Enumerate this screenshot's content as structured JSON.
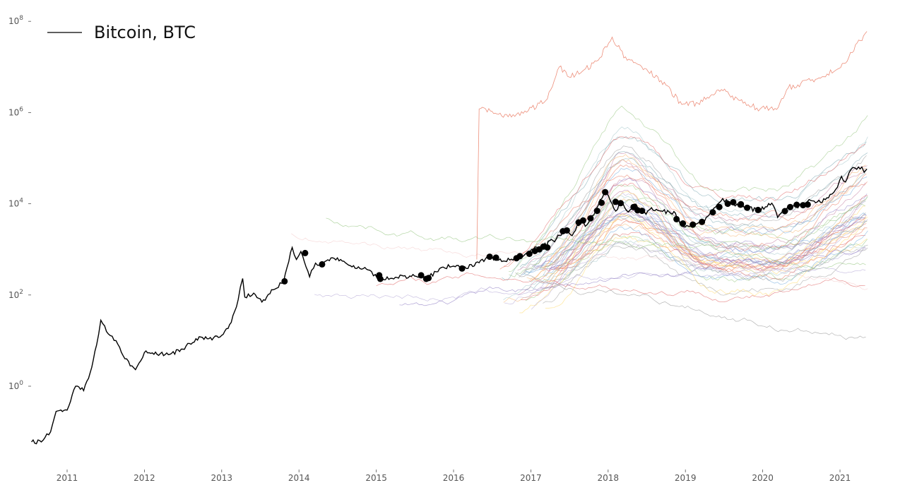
{
  "chart_data": {
    "type": "line",
    "title": "",
    "xlabel": "",
    "ylabel": "",
    "y_scale": "log",
    "ylim": [
      0.005,
      200000000
    ],
    "xlim": [
      "2010-07-01",
      "2021-12-31"
    ],
    "x_ticks": [
      "2011",
      "2012",
      "2013",
      "2014",
      "2015",
      "2016",
      "2017",
      "2018",
      "2019",
      "2020",
      "2021"
    ],
    "y_ticks": [
      {
        "value": 1,
        "base": "10",
        "exp": "0"
      },
      {
        "value": 100,
        "base": "10",
        "exp": "2"
      },
      {
        "value": 10000,
        "base": "10",
        "exp": "4"
      },
      {
        "value": 1000000,
        "base": "10",
        "exp": "6"
      },
      {
        "value": 100000000,
        "base": "10",
        "exp": "8"
      }
    ],
    "grid": false,
    "legend": {
      "position": "top-left",
      "entries": [
        {
          "label": "Bitcoin, BTC",
          "color": "#000000"
        }
      ]
    },
    "series": [
      {
        "name": "Bitcoin, BTC",
        "color": "#000000",
        "points": [
          [
            "2010-07-17",
            0.06
          ],
          [
            "2010-09-01",
            0.06
          ],
          [
            "2010-10-15",
            0.1
          ],
          [
            "2010-11-10",
            0.28
          ],
          [
            "2011-01-01",
            0.3
          ],
          [
            "2011-02-10",
            1.0
          ],
          [
            "2011-03-20",
            0.8
          ],
          [
            "2011-04-20",
            2.0
          ],
          [
            "2011-05-20",
            8.0
          ],
          [
            "2011-06-09",
            28.0
          ],
          [
            "2011-07-15",
            14.0
          ],
          [
            "2011-08-20",
            10.0
          ],
          [
            "2011-10-01",
            4.0
          ],
          [
            "2011-11-20",
            2.3
          ],
          [
            "2012-01-01",
            5.5
          ],
          [
            "2012-03-01",
            5.0
          ],
          [
            "2012-05-01",
            5.0
          ],
          [
            "2012-07-01",
            6.5
          ],
          [
            "2012-09-01",
            11.0
          ],
          [
            "2012-11-01",
            11.0
          ],
          [
            "2013-01-01",
            13.0
          ],
          [
            "2013-02-15",
            25.0
          ],
          [
            "2013-03-20",
            80.0
          ],
          [
            "2013-04-10",
            230.0
          ],
          [
            "2013-04-20",
            90.0
          ],
          [
            "2013-06-01",
            110.0
          ],
          [
            "2013-07-10",
            70.0
          ],
          [
            "2013-09-01",
            130.0
          ],
          [
            "2013-10-20",
            190.0
          ],
          [
            "2013-11-30",
            1100.0
          ],
          [
            "2013-12-20",
            600.0
          ],
          [
            "2014-01-10",
            900.0
          ],
          [
            "2014-02-20",
            250.0
          ],
          [
            "2014-03-20",
            500.0
          ],
          [
            "2014-04-10",
            450.0
          ],
          [
            "2014-06-01",
            650.0
          ],
          [
            "2014-08-01",
            550.0
          ],
          [
            "2014-10-01",
            380.0
          ],
          [
            "2014-12-01",
            350.0
          ],
          [
            "2015-01-14",
            210.0
          ],
          [
            "2015-04-01",
            245.0
          ],
          [
            "2015-07-01",
            260.0
          ],
          [
            "2015-09-01",
            235.0
          ],
          [
            "2015-11-04",
            400.0
          ],
          [
            "2016-01-01",
            430.0
          ],
          [
            "2016-04-01",
            420.0
          ],
          [
            "2016-06-15",
            700.0
          ],
          [
            "2016-08-01",
            580.0
          ],
          [
            "2016-10-01",
            610.0
          ],
          [
            "2016-12-01",
            750.0
          ],
          [
            "2017-01-05",
            1000.0
          ],
          [
            "2017-03-01",
            1200.0
          ],
          [
            "2017-05-01",
            1700.0
          ],
          [
            "2017-06-10",
            2800.0
          ],
          [
            "2017-07-15",
            2000.0
          ],
          [
            "2017-09-01",
            4700.0
          ],
          [
            "2017-09-15",
            3200.0
          ],
          [
            "2017-11-01",
            6500.0
          ],
          [
            "2017-12-17",
            19000.0
          ],
          [
            "2018-02-06",
            6900.0
          ],
          [
            "2018-03-01",
            11000.0
          ],
          [
            "2018-04-06",
            6600.0
          ],
          [
            "2018-05-05",
            9800.0
          ],
          [
            "2018-06-29",
            5900.0
          ],
          [
            "2018-07-25",
            8200.0
          ],
          [
            "2018-09-01",
            7000.0
          ],
          [
            "2018-11-15",
            6200.0
          ],
          [
            "2018-12-15",
            3200.0
          ],
          [
            "2019-02-07",
            3400.0
          ],
          [
            "2019-04-01",
            4100.0
          ],
          [
            "2019-05-15",
            8000.0
          ],
          [
            "2019-06-26",
            13000.0
          ],
          [
            "2019-08-01",
            10500.0
          ],
          [
            "2019-09-25",
            8500.0
          ],
          [
            "2019-12-15",
            7100.0
          ],
          [
            "2020-02-13",
            10300.0
          ],
          [
            "2020-03-12",
            5000.0
          ],
          [
            "2020-05-01",
            8800.0
          ],
          [
            "2020-07-01",
            9100.0
          ],
          [
            "2020-08-15",
            11800.0
          ],
          [
            "2020-10-01",
            10700.0
          ],
          [
            "2020-11-15",
            16000.0
          ],
          [
            "2020-12-20",
            23000.0
          ],
          [
            "2021-01-08",
            40000.0
          ],
          [
            "2021-01-27",
            30000.0
          ],
          [
            "2021-02-20",
            55000.0
          ],
          [
            "2021-03-13",
            61000.0
          ],
          [
            "2021-04-14",
            64000.0
          ],
          [
            "2021-04-25",
            49000.0
          ],
          [
            "2021-05-08",
            58000.0
          ]
        ],
        "markers": [
          [
            "2013-10-25",
            200.0
          ],
          [
            "2014-01-30",
            830.0
          ],
          [
            "2014-04-20",
            470.0
          ],
          [
            "2015-01-15",
            270.0
          ],
          [
            "2015-01-20",
            225.0
          ],
          [
            "2015-08-01",
            270.0
          ],
          [
            "2015-08-25",
            225.0
          ],
          [
            "2015-09-05",
            235.0
          ],
          [
            "2016-02-10",
            380.0
          ],
          [
            "2016-06-20",
            690.0
          ],
          [
            "2016-07-20",
            660.0
          ],
          [
            "2016-10-25",
            640.0
          ],
          [
            "2016-11-10",
            710.0
          ],
          [
            "2016-12-25",
            800.0
          ],
          [
            "2017-01-20",
            920.0
          ],
          [
            "2017-02-10",
            1000.0
          ],
          [
            "2017-03-01",
            1150.0
          ],
          [
            "2017-03-20",
            1100.0
          ],
          [
            "2017-06-01",
            2500.0
          ],
          [
            "2017-06-20",
            2600.0
          ],
          [
            "2017-08-15",
            3900.0
          ],
          [
            "2017-09-05",
            4300.0
          ],
          [
            "2017-10-10",
            4800.0
          ],
          [
            "2017-11-10",
            7000.0
          ],
          [
            "2017-12-01",
            10500.0
          ],
          [
            "2017-12-18",
            18000.0
          ],
          [
            "2018-02-05",
            11000.0
          ],
          [
            "2018-03-01",
            10300.0
          ],
          [
            "2018-05-01",
            8500.0
          ],
          [
            "2018-05-20",
            7200.0
          ],
          [
            "2018-06-10",
            7000.0
          ],
          [
            "2018-11-20",
            4600.0
          ],
          [
            "2018-12-20",
            3700.0
          ],
          [
            "2019-02-05",
            3500.0
          ],
          [
            "2019-03-20",
            4000.0
          ],
          [
            "2019-05-10",
            6500.0
          ],
          [
            "2019-06-10",
            8500.0
          ],
          [
            "2019-07-20",
            10000.0
          ],
          [
            "2019-08-15",
            10800.0
          ],
          [
            "2019-09-20",
            9800.0
          ],
          [
            "2019-10-20",
            8200.0
          ],
          [
            "2019-12-10",
            7300.0
          ],
          [
            "2020-04-15",
            6900.0
          ],
          [
            "2020-05-10",
            8500.0
          ],
          [
            "2020-06-10",
            9500.0
          ],
          [
            "2020-07-10",
            9300.0
          ],
          [
            "2020-08-01",
            9600.0
          ]
        ]
      },
      {
        "color": "#e8735a",
        "points": [
          [
            "2016-04-20",
            600.0
          ],
          [
            "2016-05-01",
            1200000.0
          ],
          [
            "2016-10-01",
            800000.0
          ],
          [
            "2016-12-20",
            1100000.0
          ],
          [
            "2017-03-20",
            2000000.0
          ],
          [
            "2017-05-15",
            10000000.0
          ],
          [
            "2017-07-01",
            6000000.0
          ],
          [
            "2017-09-01",
            8000000.0
          ],
          [
            "2017-11-15",
            14000000.0
          ],
          [
            "2018-01-20",
            45000000.0
          ],
          [
            "2018-04-01",
            14000000.0
          ],
          [
            "2018-07-01",
            9000000.0
          ],
          [
            "2018-10-01",
            4000000.0
          ],
          [
            "2018-12-15",
            1500000.0
          ],
          [
            "2019-03-01",
            1600000.0
          ],
          [
            "2019-06-20",
            3200000.0
          ],
          [
            "2019-10-01",
            1600000.0
          ],
          [
            "2019-12-20",
            1200000.0
          ],
          [
            "2020-03-15",
            1300000.0
          ],
          [
            "2020-05-01",
            3500000.0
          ],
          [
            "2020-08-15",
            5000000.0
          ],
          [
            "2020-11-01",
            7000000.0
          ],
          [
            "2021-01-20",
            12000000.0
          ],
          [
            "2021-05-08",
            60000000.0
          ]
        ]
      }
    ]
  }
}
